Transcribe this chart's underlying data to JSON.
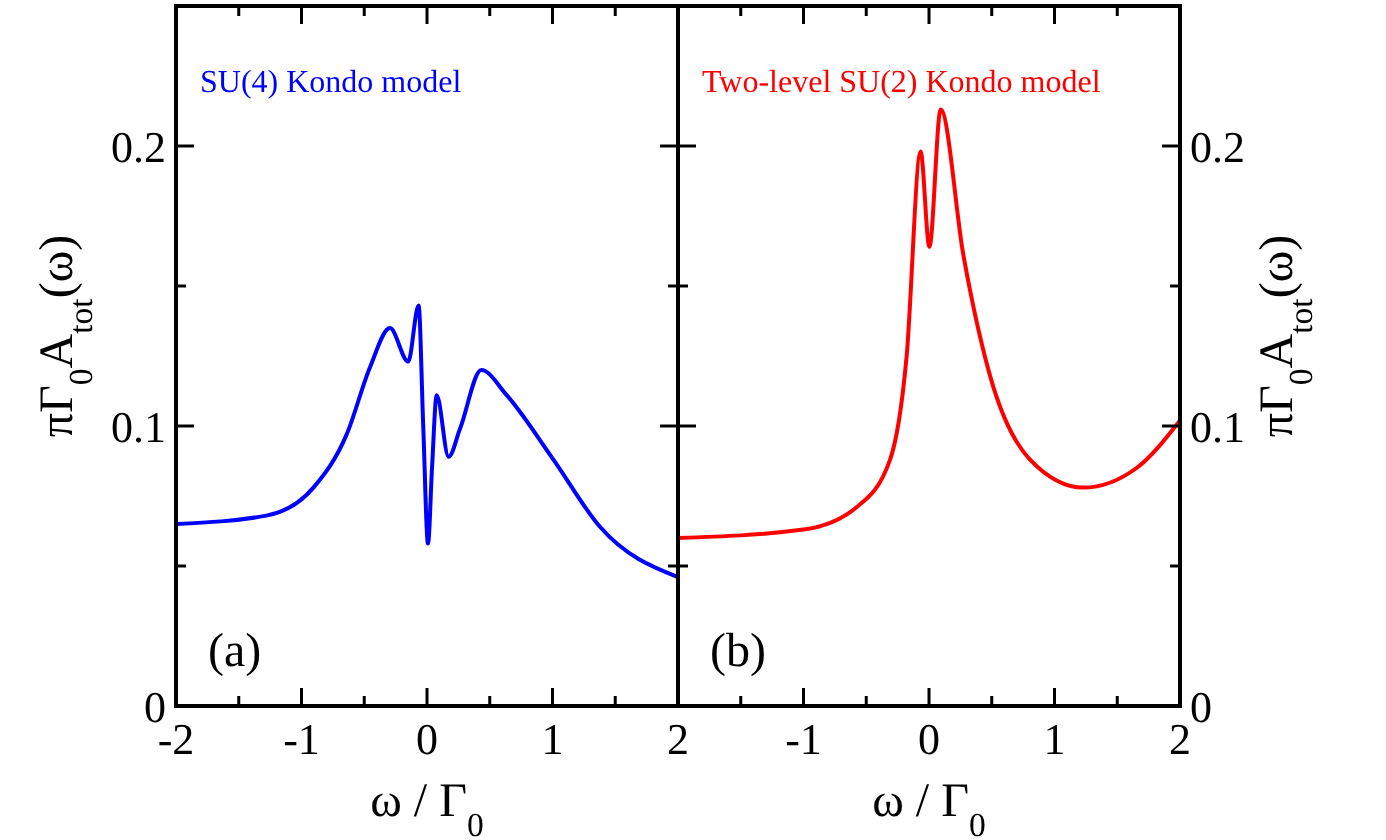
{
  "chart_data": [
    {
      "type": "line",
      "xlabel": "ω / Γ$_{0}$",
      "ylabel": "πΓ$_{0}$A$_{tot}$(ω)",
      "legend": "top left",
      "annotations": [
        "(a)"
      ],
      "xlim": [
        -2,
        2
      ],
      "xticks": [
        -2,
        {
          "value": -1.5,
          "label": null
        },
        -1,
        {
          "value": -0.5,
          "label": null
        },
        0,
        {
          "value": 0.5,
          "label": null
        },
        1,
        {
          "value": 1.5,
          "label": null
        },
        2
      ],
      "ylim": [
        0,
        0.25
      ],
      "yticks": [
        0,
        {
          "value": 0.05,
          "label": null
        },
        0.1,
        {
          "value": 0.15,
          "label": null
        },
        0.2
      ],
      "series": [
        {
          "name": "SU(4) Kondo model",
          "color": "#0000ff",
          "x": [
            -2,
            -1.28,
            -0.905,
            -0.64,
            -0.454,
            -0.295,
            -0.15,
            -0.067,
            -0.03,
            0.008,
            0.04,
            0.077,
            0.172,
            0.263,
            0.433,
            0.635,
            1.007,
            1.378,
            2
          ],
          "values": [
            0.065,
            0.068,
            0.078,
            0.097,
            0.121,
            0.135,
            0.123,
            0.143,
            0.1,
            0.058,
            0.085,
            0.111,
            0.089,
            0.099,
            0.12,
            0.111,
            0.088,
            0.064,
            0.046
          ]
        }
      ]
    },
    {
      "type": "line",
      "xlabel": "ω / Γ$_{0}$",
      "y2label": "πΓ$_{0}$A$_{tot}$(ω)",
      "legend": "top left",
      "annotations": [
        "(b)"
      ],
      "xlim": [
        -2,
        2
      ],
      "xticks": [
        {
          "value": -2,
          "label": null
        },
        {
          "value": -1.5,
          "label": null
        },
        -1,
        {
          "value": -0.5,
          "label": null
        },
        0,
        {
          "value": 0.5,
          "label": null
        },
        1,
        {
          "value": 1.5,
          "label": null
        },
        2
      ],
      "y2lim": [
        0,
        0.25
      ],
      "y2ticks": [
        0,
        {
          "value": 0.05,
          "label": null
        },
        0.1,
        {
          "value": 0.15,
          "label": null
        },
        0.2
      ],
      "series": [
        {
          "name": "Two-level SU(2) Kondo model",
          "color": "#ff0000",
          "axis": "y2",
          "x": [
            -2,
            -1,
            -0.577,
            -0.31,
            -0.178,
            -0.067,
            0.003,
            0.093,
            0.274,
            0.486,
            0.805,
            1.23,
            1.654,
            2
          ],
          "values": [
            0.06,
            0.063,
            0.071,
            0.088,
            0.125,
            0.198,
            0.164,
            0.213,
            0.161,
            0.118,
            0.088,
            0.078,
            0.085,
            0.102
          ]
        }
      ]
    }
  ]
}
